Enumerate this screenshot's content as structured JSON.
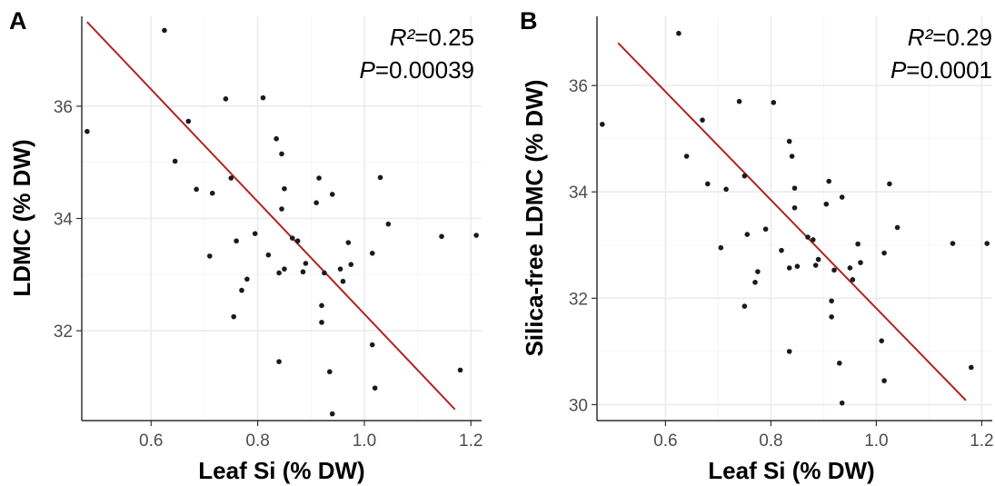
{
  "chart_data": [
    {
      "type": "scatter",
      "panel_label": "A",
      "xlabel": "Leaf Si (% DW)",
      "ylabel": "LDMC (% DW)",
      "xlim": [
        0.47,
        1.22
      ],
      "ylim": [
        30.4,
        37.6
      ],
      "xticks": [
        0.6,
        0.8,
        1.0,
        1.2
      ],
      "xtick_labels": [
        "0.6",
        "0.8",
        "1.0",
        "1.2"
      ],
      "yticks": [
        32,
        34,
        36
      ],
      "ytick_labels": [
        "32",
        "34",
        "36"
      ],
      "grid": true,
      "stat_r2_label": "R²",
      "stat_r2_value": "=0.25",
      "stat_p_label": "P",
      "stat_p_value": "=0.00039",
      "line_color": "#b22222",
      "point_color": "#1a1a1a",
      "fit_line": {
        "x": [
          0.48,
          1.17
        ],
        "y": [
          37.5,
          30.6
        ]
      },
      "points": [
        [
          0.48,
          35.55
        ],
        [
          0.625,
          37.35
        ],
        [
          0.645,
          35.02
        ],
        [
          0.67,
          35.73
        ],
        [
          0.685,
          34.52
        ],
        [
          0.71,
          33.33
        ],
        [
          0.715,
          34.45
        ],
        [
          0.74,
          36.13
        ],
        [
          0.75,
          34.72
        ],
        [
          0.755,
          32.25
        ],
        [
          0.76,
          33.6
        ],
        [
          0.77,
          32.72
        ],
        [
          0.78,
          32.92
        ],
        [
          0.795,
          33.73
        ],
        [
          0.81,
          36.15
        ],
        [
          0.82,
          33.35
        ],
        [
          0.835,
          35.42
        ],
        [
          0.84,
          33.03
        ],
        [
          0.84,
          31.45
        ],
        [
          0.845,
          35.15
        ],
        [
          0.845,
          34.17
        ],
        [
          0.85,
          34.53
        ],
        [
          0.85,
          33.1
        ],
        [
          0.865,
          33.65
        ],
        [
          0.875,
          33.6
        ],
        [
          0.885,
          33.05
        ],
        [
          0.89,
          33.2
        ],
        [
          0.91,
          34.28
        ],
        [
          0.915,
          34.72
        ],
        [
          0.92,
          32.45
        ],
        [
          0.92,
          32.15
        ],
        [
          0.925,
          33.03
        ],
        [
          0.935,
          31.27
        ],
        [
          0.94,
          34.43
        ],
        [
          0.94,
          30.52
        ],
        [
          0.955,
          33.1
        ],
        [
          0.96,
          32.88
        ],
        [
          0.97,
          33.57
        ],
        [
          0.975,
          33.18
        ],
        [
          1.015,
          31.75
        ],
        [
          1.015,
          33.38
        ],
        [
          1.02,
          30.98
        ],
        [
          1.03,
          34.73
        ],
        [
          1.045,
          33.9
        ],
        [
          1.145,
          33.68
        ],
        [
          1.18,
          31.3
        ],
        [
          1.21,
          33.7
        ]
      ]
    },
    {
      "type": "scatter",
      "panel_label": "B",
      "xlabel": "Leaf Si (% DW)",
      "ylabel": "Silica-free LDMC (% DW)",
      "xlim": [
        0.47,
        1.22
      ],
      "ylim": [
        29.7,
        37.3
      ],
      "xticks": [
        0.6,
        0.8,
        1.0,
        1.2
      ],
      "xtick_labels": [
        "0.6",
        "0.8",
        "1.0",
        "1.2"
      ],
      "yticks": [
        30,
        32,
        34,
        36
      ],
      "ytick_labels": [
        "30",
        "32",
        "34",
        "36"
      ],
      "grid": true,
      "stat_r2_label": "R²",
      "stat_r2_value": "=0.29",
      "stat_p_label": "P",
      "stat_p_value": "=0.0001",
      "line_color": "#b22222",
      "point_color": "#1a1a1a",
      "fit_line": {
        "x": [
          0.51,
          1.17
        ],
        "y": [
          36.8,
          30.08
        ]
      },
      "points": [
        [
          0.48,
          35.27
        ],
        [
          0.625,
          36.98
        ],
        [
          0.64,
          34.67
        ],
        [
          0.67,
          35.35
        ],
        [
          0.68,
          34.15
        ],
        [
          0.705,
          32.95
        ],
        [
          0.715,
          34.05
        ],
        [
          0.74,
          35.7
        ],
        [
          0.75,
          34.3
        ],
        [
          0.75,
          31.85
        ],
        [
          0.755,
          33.2
        ],
        [
          0.77,
          32.3
        ],
        [
          0.775,
          32.5
        ],
        [
          0.79,
          33.3
        ],
        [
          0.805,
          35.68
        ],
        [
          0.82,
          32.9
        ],
        [
          0.835,
          34.95
        ],
        [
          0.835,
          32.57
        ],
        [
          0.835,
          31.0
        ],
        [
          0.84,
          34.67
        ],
        [
          0.845,
          33.7
        ],
        [
          0.845,
          34.07
        ],
        [
          0.85,
          32.6
        ],
        [
          0.87,
          33.15
        ],
        [
          0.88,
          33.1
        ],
        [
          0.885,
          32.62
        ],
        [
          0.89,
          32.73
        ],
        [
          0.905,
          33.77
        ],
        [
          0.91,
          34.2
        ],
        [
          0.915,
          31.95
        ],
        [
          0.915,
          31.65
        ],
        [
          0.92,
          32.53
        ],
        [
          0.93,
          30.78
        ],
        [
          0.935,
          33.9
        ],
        [
          0.935,
          30.03
        ],
        [
          0.95,
          32.57
        ],
        [
          0.955,
          32.35
        ],
        [
          0.965,
          33.02
        ],
        [
          0.97,
          32.67
        ],
        [
          1.01,
          31.2
        ],
        [
          1.015,
          32.85
        ],
        [
          1.015,
          30.45
        ],
        [
          1.025,
          34.15
        ],
        [
          1.04,
          33.33
        ],
        [
          1.145,
          33.03
        ],
        [
          1.18,
          30.7
        ],
        [
          1.21,
          33.03
        ]
      ]
    }
  ]
}
